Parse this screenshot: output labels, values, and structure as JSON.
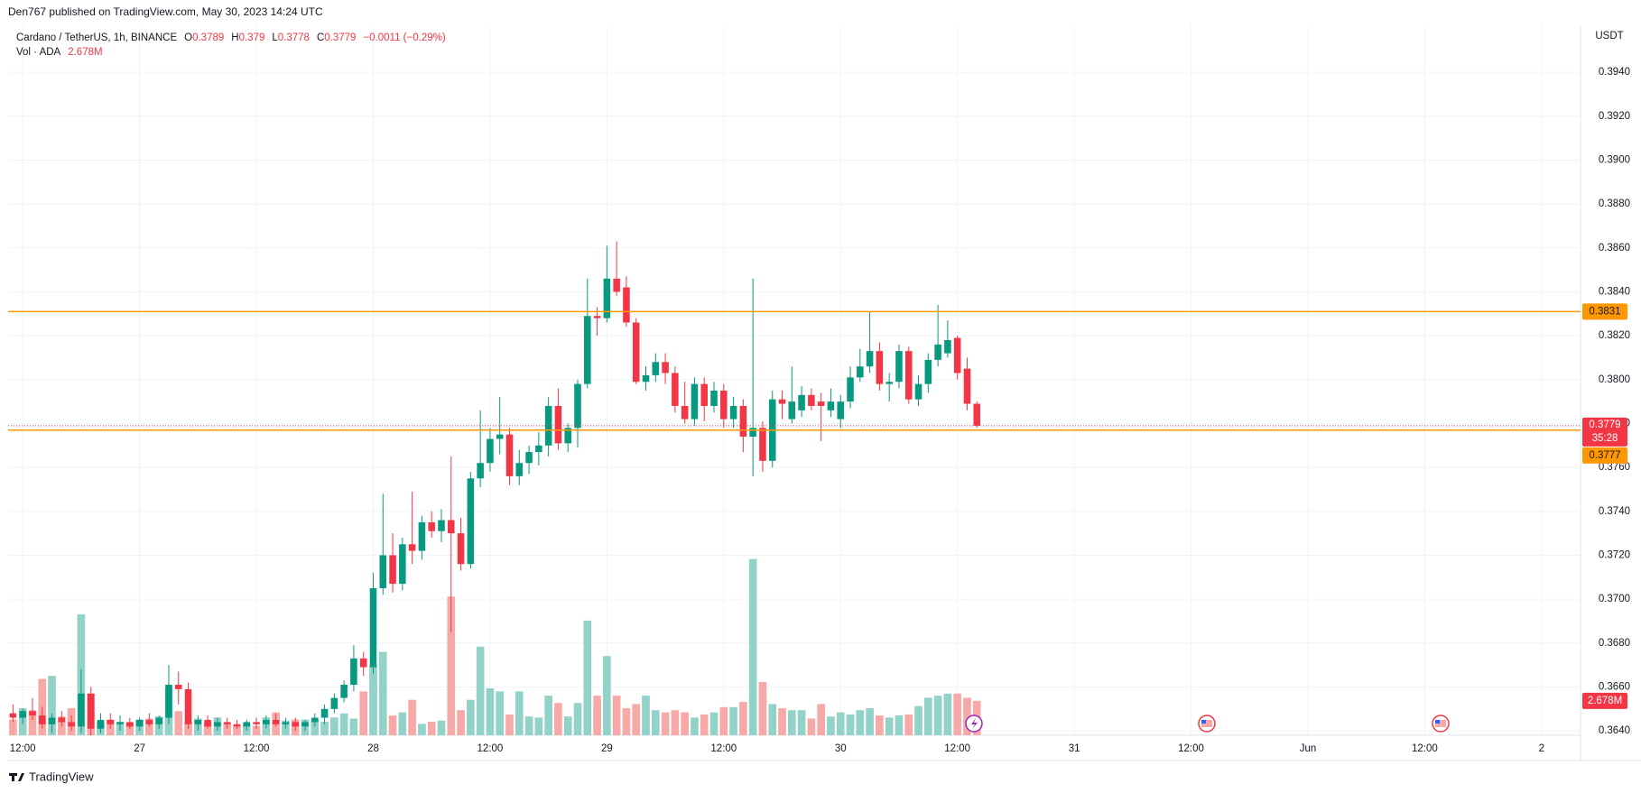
{
  "chart_data": {
    "type": "candlestick",
    "byline": "Den767 published on TradingView.com, May 30, 2023 14:24 UTC",
    "title": "Cardano / TetherUS, 1h, BINANCE",
    "ohlc_prefixes": [
      "O",
      "H",
      "L",
      "C"
    ],
    "change": "−0.0011 (−0.29%)",
    "volume_title": "Vol · ADA",
    "volume_label": "2.678M",
    "currency": "USDT",
    "countdown": "35:28",
    "brand": "TradingView",
    "colors": {
      "up": "#089981",
      "down": "#f23645",
      "volume_up": "#92d2c8",
      "volume_down": "#f7a9a7",
      "level": "#ff9800"
    },
    "grid": true,
    "xlim": [
      -0.5,
      161
    ],
    "xticks": [
      {
        "value": 1,
        "label": "12:00"
      },
      {
        "value": 13,
        "label": "27"
      },
      {
        "value": 25,
        "label": "12:00"
      },
      {
        "value": 37,
        "label": "28"
      },
      {
        "value": 49,
        "label": "12:00"
      },
      {
        "value": 61,
        "label": "29"
      },
      {
        "value": 73,
        "label": "12:00"
      },
      {
        "value": 85,
        "label": "30"
      },
      {
        "value": 97,
        "label": "12:00"
      },
      {
        "value": 109,
        "label": "31"
      },
      {
        "value": 121,
        "label": "12:00"
      },
      {
        "value": 133,
        "label": "Jun"
      },
      {
        "value": 145,
        "label": "12:00"
      },
      {
        "value": 157,
        "label": "2"
      }
    ],
    "ylim": [
      0.3638,
      0.3961
    ],
    "yticks": [
      {
        "value": 0.364,
        "label": "0.3640"
      },
      {
        "value": 0.366,
        "label": "0.3660"
      },
      {
        "value": 0.368,
        "label": "0.3680"
      },
      {
        "value": 0.37,
        "label": "0.3700"
      },
      {
        "value": 0.372,
        "label": "0.3720"
      },
      {
        "value": 0.374,
        "label": "0.3740"
      },
      {
        "value": 0.376,
        "label": "0.3760"
      },
      {
        "value": 0.378,
        "label": "0.3780"
      },
      {
        "value": 0.38,
        "label": "0.3800"
      },
      {
        "value": 0.382,
        "label": "0.3820"
      },
      {
        "value": 0.384,
        "label": "0.3840"
      },
      {
        "value": 0.386,
        "label": "0.3860"
      },
      {
        "value": 0.388,
        "label": "0.3880"
      },
      {
        "value": 0.39,
        "label": "0.3900"
      },
      {
        "value": 0.392,
        "label": "0.3920"
      },
      {
        "value": 0.394,
        "label": "0.3940"
      }
    ],
    "levels": [
      0.3831,
      0.3777
    ],
    "volume_lim": [
      0,
      20
    ],
    "candles": [
      [
        0.3648,
        0.3652,
        0.3644,
        0.3646
      ],
      [
        0.3646,
        0.365,
        0.3643,
        0.3649
      ],
      [
        0.3649,
        0.3655,
        0.3645,
        0.3647
      ],
      [
        0.3647,
        0.3651,
        0.3641,
        0.3643
      ],
      [
        0.3643,
        0.3648,
        0.3639,
        0.3646
      ],
      [
        0.3646,
        0.3649,
        0.3642,
        0.3644
      ],
      [
        0.3644,
        0.3647,
        0.364,
        0.3642
      ],
      [
        0.3642,
        0.3668,
        0.3639,
        0.3657
      ],
      [
        0.3657,
        0.366,
        0.3638,
        0.3641
      ],
      [
        0.3641,
        0.3648,
        0.3639,
        0.3645
      ],
      [
        0.3645,
        0.3648,
        0.3641,
        0.3643
      ],
      [
        0.3643,
        0.3647,
        0.364,
        0.3644
      ],
      [
        0.3644,
        0.3646,
        0.3641,
        0.3642
      ],
      [
        0.3642,
        0.3646,
        0.364,
        0.3645
      ],
      [
        0.3645,
        0.3648,
        0.3642,
        0.3643
      ],
      [
        0.3643,
        0.3647,
        0.3641,
        0.3646
      ],
      [
        0.3646,
        0.367,
        0.3643,
        0.3661
      ],
      [
        0.3661,
        0.3667,
        0.3652,
        0.3659
      ],
      [
        0.3659,
        0.3662,
        0.3641,
        0.3643
      ],
      [
        0.3643,
        0.3647,
        0.364,
        0.3645
      ],
      [
        0.3645,
        0.3647,
        0.3641,
        0.3642
      ],
      [
        0.3642,
        0.3646,
        0.364,
        0.3644
      ],
      [
        0.3644,
        0.3646,
        0.3641,
        0.3643
      ],
      [
        0.3643,
        0.3645,
        0.3641,
        0.3642
      ],
      [
        0.3642,
        0.3645,
        0.364,
        0.3644
      ],
      [
        0.3644,
        0.3646,
        0.3641,
        0.3643
      ],
      [
        0.3643,
        0.3647,
        0.3641,
        0.3645
      ],
      [
        0.3645,
        0.3648,
        0.3642,
        0.3643
      ],
      [
        0.3643,
        0.3646,
        0.3641,
        0.3644
      ],
      [
        0.3644,
        0.3646,
        0.364,
        0.3642
      ],
      [
        0.3642,
        0.3645,
        0.364,
        0.3644
      ],
      [
        0.3644,
        0.3648,
        0.3642,
        0.3646
      ],
      [
        0.3646,
        0.3652,
        0.3643,
        0.365
      ],
      [
        0.365,
        0.3657,
        0.3648,
        0.3655
      ],
      [
        0.3655,
        0.3663,
        0.3653,
        0.3661
      ],
      [
        0.3661,
        0.3679,
        0.3658,
        0.3673
      ],
      [
        0.3673,
        0.3676,
        0.3665,
        0.3669
      ],
      [
        0.3669,
        0.3712,
        0.3666,
        0.3705
      ],
      [
        0.3705,
        0.3748,
        0.3702,
        0.372
      ],
      [
        0.372,
        0.373,
        0.3703,
        0.3707
      ],
      [
        0.3707,
        0.3728,
        0.3704,
        0.3725
      ],
      [
        0.3725,
        0.3749,
        0.3716,
        0.3722
      ],
      [
        0.3722,
        0.3738,
        0.3718,
        0.3735
      ],
      [
        0.3735,
        0.374,
        0.3728,
        0.3731
      ],
      [
        0.3731,
        0.3741,
        0.3726,
        0.3736
      ],
      [
        0.3736,
        0.3765,
        0.3685,
        0.373
      ],
      [
        0.373,
        0.3737,
        0.3713,
        0.3716
      ],
      [
        0.3716,
        0.3758,
        0.3714,
        0.3755
      ],
      [
        0.3755,
        0.3786,
        0.3751,
        0.3762
      ],
      [
        0.3762,
        0.3778,
        0.3758,
        0.3773
      ],
      [
        0.3773,
        0.3792,
        0.3766,
        0.3775
      ],
      [
        0.3775,
        0.3778,
        0.3752,
        0.3756
      ],
      [
        0.3756,
        0.3768,
        0.3752,
        0.3762
      ],
      [
        0.3762,
        0.377,
        0.3757,
        0.3767
      ],
      [
        0.3767,
        0.3776,
        0.3761,
        0.377
      ],
      [
        0.377,
        0.3792,
        0.3765,
        0.3788
      ],
      [
        0.3788,
        0.3796,
        0.3768,
        0.3771
      ],
      [
        0.3771,
        0.378,
        0.3767,
        0.3778
      ],
      [
        0.3778,
        0.38,
        0.3769,
        0.3798
      ],
      [
        0.3798,
        0.3846,
        0.3796,
        0.3829
      ],
      [
        0.3829,
        0.3833,
        0.382,
        0.3828
      ],
      [
        0.3828,
        0.3861,
        0.3826,
        0.3846
      ],
      [
        0.3846,
        0.3863,
        0.3838,
        0.384
      ],
      [
        0.3842,
        0.3847,
        0.3824,
        0.3826
      ],
      [
        0.3826,
        0.3828,
        0.3798,
        0.3799
      ],
      [
        0.3799,
        0.3806,
        0.3795,
        0.3802
      ],
      [
        0.3802,
        0.3812,
        0.3799,
        0.3808
      ],
      [
        0.3808,
        0.3812,
        0.3798,
        0.3803
      ],
      [
        0.3803,
        0.3806,
        0.3785,
        0.3788
      ],
      [
        0.3788,
        0.3799,
        0.378,
        0.3782
      ],
      [
        0.3782,
        0.3801,
        0.3779,
        0.3798
      ],
      [
        0.3798,
        0.3801,
        0.3781,
        0.3788
      ],
      [
        0.3788,
        0.3799,
        0.3785,
        0.3795
      ],
      [
        0.3795,
        0.3798,
        0.3778,
        0.3782
      ],
      [
        0.3782,
        0.3792,
        0.3778,
        0.3788
      ],
      [
        0.3788,
        0.3791,
        0.3767,
        0.3774
      ],
      [
        0.3774,
        0.3846,
        0.3756,
        0.3778
      ],
      [
        0.3778,
        0.3781,
        0.3758,
        0.3763
      ],
      [
        0.3763,
        0.3795,
        0.376,
        0.3791
      ],
      [
        0.3791,
        0.3795,
        0.3782,
        0.3789
      ],
      [
        0.3782,
        0.3806,
        0.378,
        0.379
      ],
      [
        0.3786,
        0.3797,
        0.3783,
        0.3793
      ],
      [
        0.3793,
        0.3796,
        0.3786,
        0.3788
      ],
      [
        0.379,
        0.3794,
        0.3772,
        0.3788
      ],
      [
        0.3786,
        0.3796,
        0.3783,
        0.379
      ],
      [
        0.3782,
        0.3793,
        0.3778,
        0.379
      ],
      [
        0.379,
        0.3806,
        0.3787,
        0.3801
      ],
      [
        0.3801,
        0.3814,
        0.3799,
        0.3806
      ],
      [
        0.3806,
        0.3831,
        0.3803,
        0.3813
      ],
      [
        0.3813,
        0.3817,
        0.3795,
        0.3798
      ],
      [
        0.3798,
        0.3803,
        0.379,
        0.3799
      ],
      [
        0.3799,
        0.3816,
        0.3796,
        0.3813
      ],
      [
        0.3813,
        0.3815,
        0.3789,
        0.3791
      ],
      [
        0.3791,
        0.3802,
        0.3788,
        0.3798
      ],
      [
        0.3798,
        0.3812,
        0.3794,
        0.3809
      ],
      [
        0.3809,
        0.3834,
        0.3806,
        0.3816
      ],
      [
        0.3812,
        0.3827,
        0.381,
        0.3818
      ],
      [
        0.3819,
        0.382,
        0.38,
        0.3803
      ],
      [
        0.3805,
        0.381,
        0.3786,
        0.3789
      ],
      [
        0.3789,
        0.379,
        0.3778,
        0.3779
      ]
    ],
    "volumes": [
      1.22,
      2.11,
      1.95,
      4.38,
      4.62,
      1.46,
      2.11,
      9.41,
      3.24,
      1.05,
      1.22,
      1.05,
      0.97,
      1.22,
      1.3,
      1.46,
      3.73,
      1.87,
      1.05,
      1.3,
      0.97,
      1.38,
      0.97,
      0.81,
      0.81,
      0.73,
      1.38,
      1.78,
      1.14,
      1.22,
      1.22,
      1.22,
      1.05,
      1.38,
      1.7,
      1.3,
      3.41,
      5.43,
      6.49,
      1.54,
      1.78,
      2.76,
      0.89,
      1.05,
      1.14,
      10.79,
      1.95,
      2.76,
      6.89,
      3.65,
      3.41,
      1.62,
      3.41,
      1.46,
      1.38,
      3.08,
      2.51,
      1.46,
      2.51,
      8.92,
      3.08,
      6.16,
      3.08,
      2.11,
      2.43,
      3.08,
      1.95,
      1.78,
      1.95,
      1.78,
      1.38,
      1.62,
      1.78,
      2.19,
      2.19,
      2.6,
      13.71,
      4.14,
      2.43,
      2.11,
      1.95,
      1.95,
      1.3,
      2.43,
      1.46,
      1.78,
      1.62,
      1.95,
      2.11,
      1.54,
      1.38,
      1.54,
      1.62,
      2.27,
      2.92,
      3.08,
      3.24,
      3.24,
      2.92,
      2.678
    ]
  }
}
